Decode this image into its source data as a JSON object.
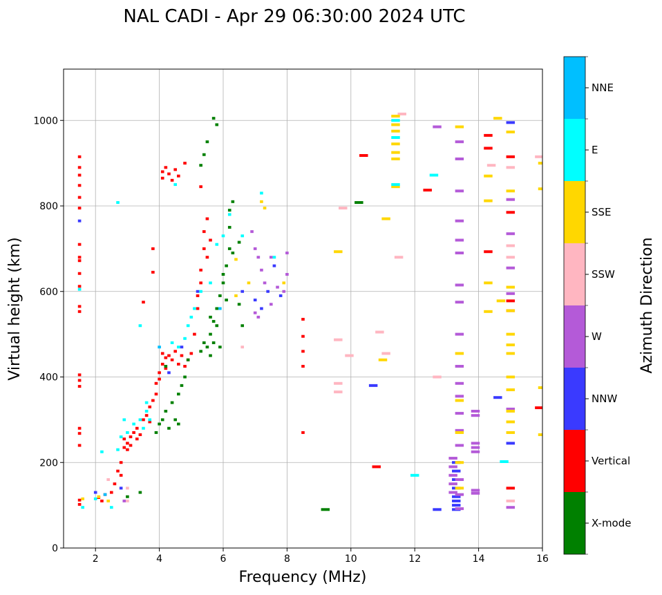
{
  "chart_data": {
    "type": "scatter",
    "title": "NAL CADI - Apr 29 06:30:00 2024 UTC",
    "xlabel": "Frequency (MHz)",
    "ylabel": "Virtual height (km)",
    "xlim": [
      1,
      16
    ],
    "ylim": [
      0,
      1120
    ],
    "xticks": [
      2,
      4,
      6,
      8,
      10,
      12,
      14,
      16
    ],
    "yticks": [
      0,
      200,
      400,
      600,
      800,
      1000
    ],
    "grid": true,
    "colorbar": {
      "label": "Azimuth Direction",
      "categories": [
        "X-mode",
        "Vertical",
        "NNW",
        "W",
        "SSW",
        "SSE",
        "E",
        "NNE"
      ],
      "colors": [
        "#008000",
        "#ff0000",
        "#3a3aff",
        "#b45ad8",
        "#ffb6c1",
        "#ffd700",
        "#00ffff",
        "#00bfff"
      ]
    },
    "point_format": [
      "frequency_mhz",
      "height_km",
      "category_index"
    ],
    "points": [
      [
        1.5,
        915,
        1
      ],
      [
        1.5,
        890,
        1
      ],
      [
        1.5,
        872,
        1
      ],
      [
        1.5,
        848,
        1
      ],
      [
        1.5,
        820,
        1
      ],
      [
        1.5,
        795,
        1
      ],
      [
        1.5,
        710,
        1
      ],
      [
        1.5,
        680,
        1
      ],
      [
        1.5,
        672,
        1
      ],
      [
        1.5,
        642,
        1
      ],
      [
        1.5,
        612,
        1
      ],
      [
        1.5,
        565,
        1
      ],
      [
        1.5,
        553,
        1
      ],
      [
        1.5,
        405,
        1
      ],
      [
        1.5,
        392,
        1
      ],
      [
        1.5,
        378,
        1
      ],
      [
        1.5,
        280,
        1
      ],
      [
        1.5,
        268,
        1
      ],
      [
        1.5,
        240,
        1
      ],
      [
        1.5,
        112,
        1
      ],
      [
        1.5,
        102,
        1
      ],
      [
        2.1,
        118,
        1
      ],
      [
        2.2,
        110,
        1
      ],
      [
        2.3,
        125,
        1
      ],
      [
        2.5,
        130,
        1
      ],
      [
        2.6,
        150,
        1
      ],
      [
        2.7,
        180,
        1
      ],
      [
        2.8,
        200,
        1
      ],
      [
        2.8,
        170,
        1
      ],
      [
        2.9,
        235,
        1
      ],
      [
        2.9,
        255,
        1
      ],
      [
        3.0,
        245,
        1
      ],
      [
        3.0,
        230,
        1
      ],
      [
        3.1,
        260,
        1
      ],
      [
        3.1,
        240,
        1
      ],
      [
        3.2,
        270,
        1
      ],
      [
        3.3,
        255,
        1
      ],
      [
        3.3,
        280,
        1
      ],
      [
        3.4,
        265,
        1
      ],
      [
        3.5,
        300,
        1
      ],
      [
        3.5,
        575,
        1
      ],
      [
        3.6,
        310,
        1
      ],
      [
        3.7,
        330,
        1
      ],
      [
        3.7,
        295,
        1
      ],
      [
        3.8,
        345,
        1
      ],
      [
        3.8,
        700,
        1
      ],
      [
        3.8,
        645,
        1
      ],
      [
        3.9,
        385,
        1
      ],
      [
        3.9,
        360,
        1
      ],
      [
        4.0,
        410,
        1
      ],
      [
        4.0,
        395,
        1
      ],
      [
        4.1,
        430,
        1
      ],
      [
        4.1,
        455,
        1
      ],
      [
        4.2,
        445,
        1
      ],
      [
        4.2,
        420,
        1
      ],
      [
        4.3,
        450,
        1
      ],
      [
        4.4,
        440,
        1
      ],
      [
        4.5,
        460,
        1
      ],
      [
        4.6,
        430,
        1
      ],
      [
        4.7,
        450,
        1
      ],
      [
        4.8,
        425,
        1
      ],
      [
        4.9,
        440,
        1
      ],
      [
        5.0,
        455,
        1
      ],
      [
        5.1,
        500,
        1
      ],
      [
        5.2,
        560,
        1
      ],
      [
        5.2,
        590,
        1
      ],
      [
        5.3,
        620,
        1
      ],
      [
        5.3,
        650,
        1
      ],
      [
        5.4,
        700,
        1
      ],
      [
        5.4,
        740,
        1
      ],
      [
        5.5,
        680,
        1
      ],
      [
        5.5,
        770,
        1
      ],
      [
        5.6,
        720,
        1
      ],
      [
        4.1,
        880,
        1
      ],
      [
        4.1,
        865,
        1
      ],
      [
        4.2,
        890,
        1
      ],
      [
        4.3,
        875,
        1
      ],
      [
        4.4,
        860,
        1
      ],
      [
        4.5,
        885,
        1
      ],
      [
        4.6,
        870,
        1
      ],
      [
        4.8,
        900,
        1
      ],
      [
        5.3,
        845,
        1
      ],
      [
        8.5,
        535,
        1
      ],
      [
        8.5,
        495,
        1
      ],
      [
        8.5,
        460,
        1
      ],
      [
        8.5,
        425,
        1
      ],
      [
        8.5,
        270,
        1
      ],
      [
        10.4,
        918,
        1
      ],
      [
        12.4,
        837,
        1
      ],
      [
        10.8,
        190,
        1
      ],
      [
        14.3,
        965,
        1
      ],
      [
        14.3,
        935,
        1
      ],
      [
        14.3,
        693,
        1
      ],
      [
        15,
        915,
        1
      ],
      [
        15,
        785,
        1
      ],
      [
        15,
        578,
        1
      ],
      [
        15,
        555,
        1
      ],
      [
        15,
        140,
        1
      ],
      [
        15.9,
        328,
        1
      ],
      [
        3.0,
        120,
        0
      ],
      [
        3.4,
        130,
        0
      ],
      [
        3.9,
        270,
        0
      ],
      [
        4.0,
        290,
        0
      ],
      [
        4.1,
        300,
        0
      ],
      [
        4.2,
        320,
        0
      ],
      [
        4.3,
        280,
        0
      ],
      [
        4.4,
        340,
        0
      ],
      [
        4.5,
        300,
        0
      ],
      [
        4.6,
        290,
        0
      ],
      [
        4.6,
        360,
        0
      ],
      [
        4.7,
        380,
        0
      ],
      [
        4.8,
        400,
        0
      ],
      [
        4.9,
        440,
        0
      ],
      [
        5.3,
        460,
        0
      ],
      [
        5.4,
        480,
        0
      ],
      [
        5.5,
        470,
        0
      ],
      [
        5.6,
        500,
        0
      ],
      [
        5.6,
        450,
        0
      ],
      [
        5.7,
        530,
        0
      ],
      [
        5.7,
        480,
        0
      ],
      [
        5.8,
        560,
        0
      ],
      [
        5.8,
        520,
        0
      ],
      [
        5.9,
        590,
        0
      ],
      [
        5.9,
        470,
        0
      ],
      [
        6.0,
        620,
        0
      ],
      [
        6.0,
        640,
        0
      ],
      [
        6.1,
        660,
        0
      ],
      [
        6.1,
        580,
        0
      ],
      [
        6.2,
        700,
        0
      ],
      [
        6.2,
        750,
        0
      ],
      [
        6.2,
        790,
        0
      ],
      [
        6.3,
        810,
        0
      ],
      [
        6.3,
        690,
        0
      ],
      [
        6.5,
        715,
        0
      ],
      [
        6.5,
        570,
        0
      ],
      [
        6.6,
        520,
        0
      ],
      [
        5.7,
        1005,
        0
      ],
      [
        5.8,
        990,
        0
      ],
      [
        5.5,
        950,
        0
      ],
      [
        5.4,
        920,
        0
      ],
      [
        5.3,
        895,
        0
      ],
      [
        9.2,
        90,
        0
      ],
      [
        10.25,
        808,
        0
      ],
      [
        4.2,
        425,
        0
      ],
      [
        5.6,
        540,
        0
      ],
      [
        1.5,
        765,
        2
      ],
      [
        2.0,
        130,
        2
      ],
      [
        2.8,
        140,
        2
      ],
      [
        4.3,
        410,
        2
      ],
      [
        4.7,
        470,
        2
      ],
      [
        5.2,
        600,
        2
      ],
      [
        6.6,
        600,
        2
      ],
      [
        7.0,
        580,
        2
      ],
      [
        7.2,
        560,
        2
      ],
      [
        7.4,
        600,
        2
      ],
      [
        7.6,
        660,
        2
      ],
      [
        7.8,
        590,
        2
      ],
      [
        10.7,
        380,
        2
      ],
      [
        12.7,
        90,
        2
      ],
      [
        13.3,
        90,
        2
      ],
      [
        13.3,
        100,
        2
      ],
      [
        13.3,
        110,
        2
      ],
      [
        13.3,
        120,
        2
      ],
      [
        13.3,
        140,
        2
      ],
      [
        13.3,
        160,
        2
      ],
      [
        13.3,
        180,
        2
      ],
      [
        13.3,
        200,
        2
      ],
      [
        15,
        995,
        2
      ],
      [
        15,
        245,
        2
      ],
      [
        14.6,
        352,
        2
      ],
      [
        2.9,
        110,
        3
      ],
      [
        6.9,
        740,
        3
      ],
      [
        7.0,
        700,
        3
      ],
      [
        7.1,
        680,
        3
      ],
      [
        7.2,
        650,
        3
      ],
      [
        7.3,
        620,
        3
      ],
      [
        7.0,
        550,
        3
      ],
      [
        7.1,
        540,
        3
      ],
      [
        7.5,
        570,
        3
      ],
      [
        7.7,
        610,
        3
      ],
      [
        8.0,
        690,
        3
      ],
      [
        8.0,
        640,
        3
      ],
      [
        7.9,
        600,
        3
      ],
      [
        7.5,
        680,
        3
      ],
      [
        12.7,
        985,
        3
      ],
      [
        13.4,
        950,
        3
      ],
      [
        13.4,
        910,
        3
      ],
      [
        13.4,
        835,
        3
      ],
      [
        13.4,
        765,
        3
      ],
      [
        13.4,
        720,
        3
      ],
      [
        13.4,
        690,
        3
      ],
      [
        13.4,
        615,
        3
      ],
      [
        13.4,
        575,
        3
      ],
      [
        13.4,
        500,
        3
      ],
      [
        13.4,
        425,
        3
      ],
      [
        13.4,
        385,
        3
      ],
      [
        13.4,
        355,
        3
      ],
      [
        13.4,
        315,
        3
      ],
      [
        13.4,
        275,
        3
      ],
      [
        13.4,
        240,
        3
      ],
      [
        13.2,
        210,
        3
      ],
      [
        13.2,
        190,
        3
      ],
      [
        13.2,
        170,
        3
      ],
      [
        13.2,
        150,
        3
      ],
      [
        13.2,
        130,
        3
      ],
      [
        13.4,
        160,
        3
      ],
      [
        13.4,
        125,
        3
      ],
      [
        13.4,
        92,
        3
      ],
      [
        13.9,
        320,
        3
      ],
      [
        13.9,
        310,
        3
      ],
      [
        13.9,
        245,
        3
      ],
      [
        13.9,
        235,
        3
      ],
      [
        13.9,
        225,
        3
      ],
      [
        13.9,
        135,
        3
      ],
      [
        13.9,
        128,
        3
      ],
      [
        15,
        815,
        3
      ],
      [
        15,
        735,
        3
      ],
      [
        15,
        655,
        3
      ],
      [
        15,
        595,
        3
      ],
      [
        15,
        325,
        3
      ],
      [
        15,
        95,
        3
      ],
      [
        2.4,
        160,
        4
      ],
      [
        3.0,
        110,
        4
      ],
      [
        3.0,
        140,
        4
      ],
      [
        6.6,
        470,
        4
      ],
      [
        9.6,
        487,
        4
      ],
      [
        9.6,
        385,
        4
      ],
      [
        9.6,
        365,
        4
      ],
      [
        9.95,
        450,
        4
      ],
      [
        10.9,
        505,
        4
      ],
      [
        11.1,
        455,
        4
      ],
      [
        9.75,
        795,
        4
      ],
      [
        14.4,
        895,
        4
      ],
      [
        15,
        890,
        4
      ],
      [
        15,
        707,
        4
      ],
      [
        15,
        680,
        4
      ],
      [
        15,
        110,
        4
      ],
      [
        12.7,
        400,
        4
      ],
      [
        15.9,
        915,
        4
      ],
      [
        11.5,
        680,
        4
      ],
      [
        11.6,
        1015,
        4
      ],
      [
        1.6,
        115,
        5
      ],
      [
        2.1,
        120,
        5
      ],
      [
        2.4,
        110,
        5
      ],
      [
        6.4,
        675,
        5
      ],
      [
        6.8,
        620,
        5
      ],
      [
        6.4,
        590,
        5
      ],
      [
        7.2,
        810,
        5
      ],
      [
        7.3,
        795,
        5
      ],
      [
        7.9,
        620,
        5
      ],
      [
        11.4,
        1010,
        5
      ],
      [
        11.4,
        990,
        5
      ],
      [
        11.4,
        975,
        5
      ],
      [
        11.4,
        945,
        5
      ],
      [
        11.4,
        925,
        5
      ],
      [
        11.4,
        910,
        5
      ],
      [
        11.4,
        845,
        5
      ],
      [
        13.4,
        985,
        5
      ],
      [
        13.4,
        455,
        5
      ],
      [
        13.4,
        345,
        5
      ],
      [
        13.4,
        270,
        5
      ],
      [
        13.4,
        200,
        5
      ],
      [
        13.4,
        140,
        5
      ],
      [
        15,
        973,
        5
      ],
      [
        15,
        835,
        5
      ],
      [
        15,
        610,
        5
      ],
      [
        15,
        555,
        5
      ],
      [
        15,
        500,
        5
      ],
      [
        15,
        475,
        5
      ],
      [
        15,
        455,
        5
      ],
      [
        15,
        400,
        5
      ],
      [
        15,
        370,
        5
      ],
      [
        15,
        320,
        5
      ],
      [
        15,
        295,
        5
      ],
      [
        15,
        270,
        5
      ],
      [
        14.3,
        870,
        5
      ],
      [
        14.3,
        812,
        5
      ],
      [
        14.3,
        620,
        5
      ],
      [
        14.3,
        553,
        5
      ],
      [
        16,
        900,
        5
      ],
      [
        16,
        840,
        5
      ],
      [
        16,
        375,
        5
      ],
      [
        16,
        265,
        5
      ],
      [
        9.6,
        693,
        5
      ],
      [
        11.0,
        440,
        5
      ],
      [
        11.1,
        770,
        5
      ],
      [
        14.6,
        1005,
        5
      ],
      [
        14.7,
        578,
        5
      ],
      [
        1.5,
        605,
        6
      ],
      [
        1.6,
        95,
        6
      ],
      [
        2.0,
        115,
        6
      ],
      [
        2.2,
        225,
        6
      ],
      [
        2.5,
        95,
        6
      ],
      [
        2.7,
        230,
        6
      ],
      [
        2.8,
        260,
        6
      ],
      [
        2.9,
        300,
        6
      ],
      [
        3.0,
        270,
        6
      ],
      [
        3.2,
        290,
        6
      ],
      [
        3.4,
        300,
        6
      ],
      [
        3.5,
        280,
        6
      ],
      [
        3.6,
        320,
        6
      ],
      [
        3.7,
        300,
        6
      ],
      [
        3.6,
        340,
        6
      ],
      [
        2.7,
        808,
        6
      ],
      [
        3.4,
        520,
        6
      ],
      [
        4.4,
        480,
        6
      ],
      [
        4.6,
        470,
        6
      ],
      [
        4.8,
        490,
        6
      ],
      [
        4.9,
        520,
        6
      ],
      [
        5.0,
        540,
        6
      ],
      [
        5.1,
        560,
        6
      ],
      [
        5.3,
        600,
        6
      ],
      [
        5.6,
        620,
        6
      ],
      [
        5.8,
        710,
        6
      ],
      [
        6.0,
        730,
        6
      ],
      [
        6.2,
        780,
        6
      ],
      [
        6.6,
        730,
        6
      ],
      [
        7.2,
        830,
        6
      ],
      [
        7.6,
        680,
        6
      ],
      [
        11.4,
        850,
        6
      ],
      [
        11.4,
        960,
        6
      ],
      [
        11.4,
        1000,
        6
      ],
      [
        12.6,
        872,
        6
      ],
      [
        12.0,
        170,
        6
      ],
      [
        4.5,
        850,
        6
      ],
      [
        14.8,
        202,
        6
      ],
      [
        2.3,
        125,
        7
      ],
      [
        4.0,
        470,
        7
      ],
      [
        5.9,
        560,
        7
      ]
    ]
  }
}
